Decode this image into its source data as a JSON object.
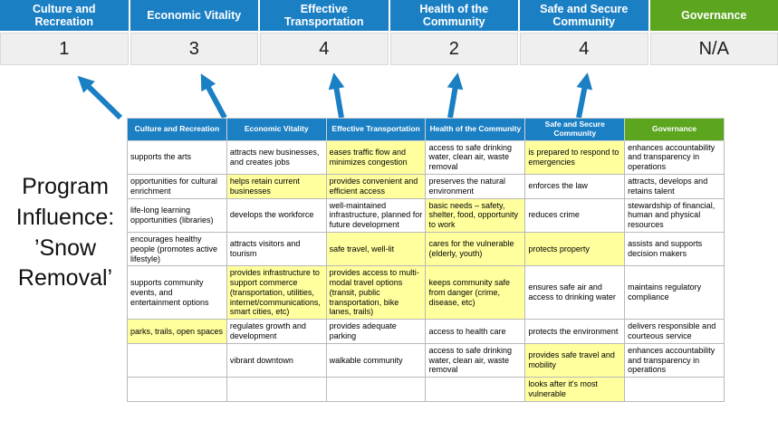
{
  "title": "Program Influence: ’Snow Removal’",
  "colors": {
    "header_blue": "#1b7fc4",
    "header_green": "#5ca51f",
    "highlight_yellow": "#ffff9e",
    "score_band_gray": "#efefef",
    "arrow_blue": "#1b7fc4"
  },
  "columns": [
    {
      "label": "Culture and Recreation",
      "score": "1",
      "color": "blue"
    },
    {
      "label": "Economic Vitality",
      "score": "3",
      "color": "blue"
    },
    {
      "label": "Effective Transportation",
      "score": "4",
      "color": "blue"
    },
    {
      "label": "Health of the Community",
      "score": "2",
      "color": "blue"
    },
    {
      "label": "Safe and Secure Community",
      "score": "4",
      "color": "blue"
    },
    {
      "label": "Governance",
      "score": "N/A",
      "color": "green"
    }
  ],
  "matrix": {
    "headers": [
      "Culture and Recreation",
      "Economic Vitality",
      "Effective Transportation",
      "Health of the Community",
      "Safe and Secure Community",
      "Governance"
    ],
    "header_colors": [
      "blue",
      "blue",
      "blue",
      "blue",
      "blue",
      "green"
    ],
    "rows": [
      [
        {
          "t": "supports the arts",
          "h": false
        },
        {
          "t": "attracts new businesses, and creates jobs",
          "h": false
        },
        {
          "t": "eases traffic flow and minimizes congestion",
          "h": true
        },
        {
          "t": "access to safe drinking water, clean air, waste removal",
          "h": false
        },
        {
          "t": "is prepared to respond to emergencies",
          "h": true
        },
        {
          "t": "enhances accountability and transparency in operations",
          "h": false
        }
      ],
      [
        {
          "t": "opportunities for cultural enrichment",
          "h": false
        },
        {
          "t": "helps retain current businesses",
          "h": true
        },
        {
          "t": "provides convenient and efficient access",
          "h": true
        },
        {
          "t": "preserves the natural environment",
          "h": false
        },
        {
          "t": "enforces the law",
          "h": false
        },
        {
          "t": "attracts, develops and retains talent",
          "h": false
        }
      ],
      [
        {
          "t": "life-long learning opportunities (libraries)",
          "h": false
        },
        {
          "t": "develops the workforce",
          "h": false
        },
        {
          "t": "well-maintained infrastructure, planned for future development",
          "h": false
        },
        {
          "t": "basic needs – safety, shelter, food, opportunity to work",
          "h": true
        },
        {
          "t": "reduces crime",
          "h": false
        },
        {
          "t": "stewardship of financial, human and physical resources",
          "h": false
        }
      ],
      [
        {
          "t": "encourages healthy people (promotes active lifestyle)",
          "h": false
        },
        {
          "t": "attracts visitors and tourism",
          "h": false
        },
        {
          "t": "safe travel, well-lit",
          "h": true
        },
        {
          "t": "cares for the vulnerable (elderly, youth)",
          "h": true
        },
        {
          "t": "protects property",
          "h": true
        },
        {
          "t": "assists and supports decision makers",
          "h": false
        }
      ],
      [
        {
          "t": "supports community events, and entertainment options",
          "h": false
        },
        {
          "t": "provides infrastructure to support commerce (transportation, utilities, internet/communications, smart cities, etc)",
          "h": true
        },
        {
          "t": "provides access to multi-modal travel options (transit, public transportation, bike lanes, trails)",
          "h": true
        },
        {
          "t": "keeps community safe from danger (crime, disease, etc)",
          "h": true
        },
        {
          "t": "ensures safe air and access to drinking water",
          "h": false
        },
        {
          "t": "maintains regulatory compliance",
          "h": false
        }
      ],
      [
        {
          "t": "parks, trails, open spaces",
          "h": true
        },
        {
          "t": "regulates growth and development",
          "h": false
        },
        {
          "t": "provides adequate parking",
          "h": false
        },
        {
          "t": "access to health care",
          "h": false
        },
        {
          "t": "protects the environment",
          "h": false
        },
        {
          "t": "delivers responsible and courteous service",
          "h": false
        }
      ],
      [
        {
          "t": "",
          "h": false
        },
        {
          "t": "vibrant downtown",
          "h": false
        },
        {
          "t": "walkable community",
          "h": false
        },
        {
          "t": "access to safe drinking water, clean air, waste removal",
          "h": false
        },
        {
          "t": "provides safe travel and mobility",
          "h": true
        },
        {
          "t": "enhances accountability and transparency in operations",
          "h": false
        }
      ],
      [
        {
          "t": "",
          "h": false
        },
        {
          "t": "",
          "h": false
        },
        {
          "t": "",
          "h": false
        },
        {
          "t": "",
          "h": false
        },
        {
          "t": "looks after it's most vulnerable",
          "h": true
        },
        {
          "t": "",
          "h": false
        }
      ]
    ]
  }
}
